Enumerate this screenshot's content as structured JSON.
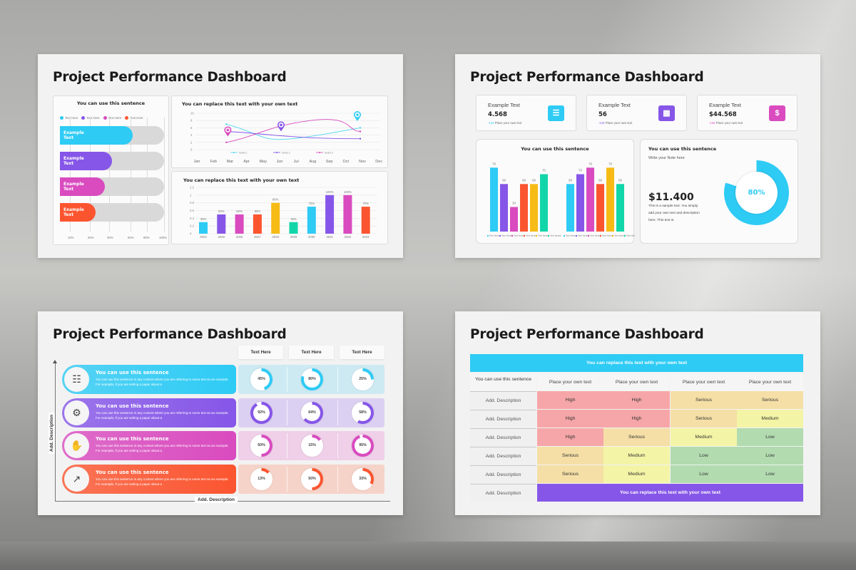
{
  "slides": [
    {
      "title": "Project Performance Dashboard",
      "hbar_card": {
        "title": "You can use this sentence",
        "legend": [
          "Text Here",
          "Text Here",
          "Text Here",
          "Text Here"
        ],
        "bars": [
          {
            "label": "Example Text",
            "value": 70,
            "color": "#2ecbf5"
          },
          {
            "label": "Example Text",
            "value": 50,
            "color": "#8656e8"
          },
          {
            "label": "Example Text",
            "value": 43,
            "color": "#d94bbf"
          },
          {
            "label": "Example Text",
            "value": 34,
            "color": "#fb5530"
          }
        ],
        "xticks": [
          "10%",
          "20%",
          "40%",
          "60%",
          "80%",
          "100%"
        ]
      },
      "line_card": {
        "title": "You can replace this text with your own text",
        "yticks": [
          "10",
          "8",
          "6",
          "4",
          "2",
          "0"
        ],
        "months": [
          "Jan",
          "Feb",
          "Mar",
          "Apr",
          "May",
          "Jun",
          "Jul",
          "Aug",
          "Sep",
          "Oct",
          "Nov",
          "Dec"
        ],
        "legend": [
          "Series 1",
          "Series 2",
          "Series 3"
        ]
      },
      "bar_card": {
        "title": "You can replace this text with your own text",
        "yticks": [
          "1.2",
          "1",
          "0.8",
          "0.6",
          "0.4",
          "0.2",
          "0"
        ]
      }
    },
    {
      "title": "Project Performance Dashboard",
      "stats": [
        {
          "title": "Example Text",
          "value": "4.568",
          "delta": "-134",
          "sub": "Place your own text",
          "icon": "hierarchy-icon",
          "color": "#2ecbf5"
        },
        {
          "title": "Example Text",
          "value": "56",
          "delta": "-134",
          "sub": "Place your own text",
          "icon": "grid-icon",
          "color": "#8656e8"
        },
        {
          "title": "Example Text",
          "value": "$44.568",
          "delta": "-134",
          "sub": "Place your own text",
          "icon": "money-hand-icon",
          "color": "#d94bbf"
        }
      ],
      "grouped_card": {
        "title": "You can use this sentence",
        "legend": [
          "Text Here",
          "Text Here2",
          "Text Here3",
          "Text Here4",
          "Text Here5",
          "Text Here6"
        ]
      },
      "note_card": {
        "title": "You can use this sentence",
        "subtitle": "Write your Note here",
        "amount": "$11.400",
        "description": "This is a sample text. You simply add your own text and description here. This text is.",
        "percent": "80%"
      }
    },
    {
      "title": "Project Performance Dashboard",
      "columns": [
        "Text Here",
        "Text Here",
        "Text Here"
      ],
      "y_axis_label": "Add. Description",
      "x_axis_label": "Add. Description",
      "rows": [
        {
          "title": "You can use this sentence",
          "desc": "You can use this sentence in any context where you are referring to some text as an example. For example, if you are writing a paper about a",
          "color": "#2ecbf5",
          "bg": "#cdeaf3",
          "icon": "network-icon",
          "glyph": "☷",
          "values": [
            "45%",
            "80%",
            "25%"
          ],
          "nums": [
            45,
            80,
            25
          ]
        },
        {
          "title": "You can use this sentence",
          "desc": "You can use this sentence in any context where you are referring to some text as an example. For example, if you are writing a paper about a",
          "color": "#8656e8",
          "bg": "#dcd0f2",
          "icon": "gears-icon",
          "glyph": "⚙",
          "values": [
            "92%",
            "64%",
            "58%"
          ],
          "nums": [
            92,
            64,
            58
          ]
        },
        {
          "title": "You can use this sentence",
          "desc": "You can use this sentence in any context where you are referring to some text as an example. For example, if you are writing a paper about a",
          "color": "#d94bbf",
          "bg": "#efd0e8",
          "icon": "hand-gear-icon",
          "glyph": "✋",
          "values": [
            "50%",
            "15%",
            "95%"
          ],
          "nums": [
            50,
            15,
            95
          ]
        },
        {
          "title": "You can use this sentence",
          "desc": "You can use this sentence in any context where you are referring to some text as an example. For example, if you are writing a paper about a",
          "color": "#fb5530",
          "bg": "#f6d3c8",
          "icon": "growth-chart-icon",
          "glyph": "↗",
          "values": [
            "13%",
            "50%",
            "33%"
          ],
          "nums": [
            13,
            50,
            33
          ]
        }
      ]
    },
    {
      "title": "Project Performance Dashboard",
      "table": {
        "header_banner": "You can replace this text with your own text",
        "corner": "You can use this sentence",
        "columns": [
          "Place your own text",
          "Place your own text",
          "Place your own text",
          "Place your own text"
        ],
        "rows": [
          {
            "label": "Add. Description",
            "cells": [
              "High",
              "High",
              "Serious",
              "Serious"
            ]
          },
          {
            "label": "Add. Description",
            "cells": [
              "High",
              "High",
              "Serious",
              "Medium"
            ]
          },
          {
            "label": "Add. Description",
            "cells": [
              "High",
              "Serious",
              "Medium",
              "Low"
            ]
          },
          {
            "label": "Add. Description",
            "cells": [
              "Serious",
              "Medium",
              "Low",
              "Low"
            ]
          },
          {
            "label": "Add. Description",
            "cells": [
              "Serious",
              "Medium",
              "Low",
              "Low"
            ]
          }
        ],
        "footer_label": "Add. Description",
        "footer_banner": "You can replace this text with your own text",
        "level_colors": {
          "High": "#f6a6a8",
          "Serious": "#f5dfa6",
          "Medium": "#f4f4a6",
          "Low": "#b2dbb0"
        },
        "banner_color": "#2ecbf5",
        "footer_color": "#8656e8"
      }
    }
  ],
  "chart_data": [
    {
      "type": "bar",
      "orientation": "horizontal",
      "title": "You can use this sentence",
      "categories": [
        "Example Text",
        "Example Text",
        "Example Text",
        "Example Text"
      ],
      "values": [
        70,
        50,
        43,
        34
      ],
      "xlabel": "",
      "ylabel": "",
      "xticks": [
        "10%",
        "20%",
        "40%",
        "60%",
        "80%",
        "100%"
      ],
      "legend": [
        "Text Here",
        "Text Here",
        "Text Here",
        "Text Here"
      ]
    },
    {
      "type": "line",
      "title": "You can replace this text with your own text",
      "x": [
        "Feb",
        "Jun",
        "Nov"
      ],
      "series": [
        {
          "name": "Series 1",
          "values": [
            7,
            3,
            6
          ]
        },
        {
          "name": "Series 2",
          "values": [
            5,
            4,
            3
          ]
        },
        {
          "name": "Series 3",
          "values": [
            2,
            7,
            5
          ]
        }
      ],
      "ylim": [
        0,
        10
      ],
      "xticks": [
        "Jan",
        "Feb",
        "Mar",
        "Apr",
        "May",
        "Jun",
        "Jul",
        "Aug",
        "Sep",
        "Oct",
        "Nov",
        "Dec"
      ]
    },
    {
      "type": "bar",
      "title": "You can replace this text with your own text",
      "categories": [
        "2024",
        "2025",
        "2026",
        "2027",
        "2028",
        "2029",
        "2030",
        "2031",
        "2032",
        "2033"
      ],
      "values": [
        0.3,
        0.5,
        0.5,
        0.5,
        0.8,
        0.3,
        0.7,
        1.0,
        1.0,
        0.7
      ],
      "labels": [
        "30%",
        "50%",
        "50%",
        "50%",
        "80%",
        "30%",
        "70%",
        "100%",
        "100%",
        "70%"
      ],
      "colors": [
        "#2ecbf5",
        "#8656e8",
        "#d94bbf",
        "#fb5530",
        "#f7bb16",
        "#12d6a9",
        "#2ecbf5",
        "#8656e8",
        "#d94bbf",
        "#fb5530"
      ],
      "ylim": [
        0,
        1.2
      ]
    },
    {
      "type": "bar",
      "title": "You can use this sentence",
      "categories": [
        "Group 1",
        "Group 2"
      ],
      "series": [
        {
          "name": "Text Here",
          "values": [
            78,
            58
          ]
        },
        {
          "name": "Text Here2",
          "values": [
            58,
            70
          ]
        },
        {
          "name": "Text Here3",
          "values": [
            30,
            78
          ]
        },
        {
          "name": "Text Here4",
          "values": [
            58,
            58
          ]
        },
        {
          "name": "Text Here5",
          "values": [
            58,
            78
          ]
        },
        {
          "name": "Text Here6",
          "values": [
            70,
            58
          ]
        }
      ],
      "colors": [
        "#2ecbf5",
        "#8656e8",
        "#d94bbf",
        "#fb5530",
        "#f7bb16",
        "#12d6a9"
      ],
      "ylim": [
        0,
        80
      ]
    },
    {
      "type": "pie",
      "title": "You can use this sentence",
      "values": [
        80,
        20
      ],
      "labels": [
        "80%",
        ""
      ]
    }
  ]
}
